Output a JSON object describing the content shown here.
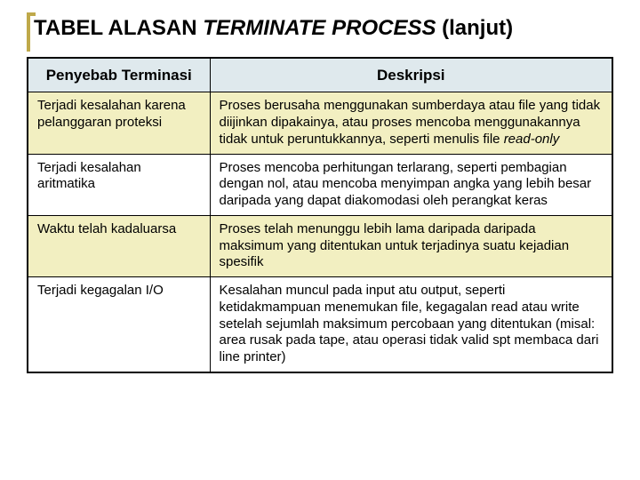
{
  "title": {
    "prefix": "TABEL ALASAN ",
    "italic": "TERMINATE PROCESS",
    "suffix": " (lanjut)"
  },
  "table": {
    "columns": [
      "Penyebab Terminasi",
      "Deskripsi"
    ],
    "rows": [
      {
        "cause": "Terjadi kesalahan karena pelanggaran proteksi",
        "desc_a": "Proses berusaha menggunakan sumberdaya atau file yang tidak diijinkan dipakainya, atau proses mencoba menggunakannya tidak untuk peruntukkannya, seperti menulis file ",
        "desc_b": "read-only",
        "highlight": true
      },
      {
        "cause": "Terjadi kesalahan aritmatika",
        "desc_a": "Proses mencoba perhitungan terlarang, seperti pembagian dengan nol, atau mencoba menyimpan angka yang lebih besar daripada yang dapat diakomodasi oleh perangkat keras",
        "desc_b": "",
        "highlight": false
      },
      {
        "cause": "Waktu telah kadaluarsa",
        "desc_a": "Proses telah menunggu lebih lama daripada daripada maksimum yang ditentukan untuk terjadinya suatu kejadian spesifik",
        "desc_b": "",
        "highlight": true
      },
      {
        "cause": "Terjadi kegagalan I/O",
        "desc_a": "Kesalahan muncul pada input atu output, seperti ketidakmampuan menemukan file, kegagalan read atau write setelah sejumlah maksimum percobaan yang ditentukan (misal: area rusak pada tape, atau operasi tidak valid spt membaca dari line printer)",
        "desc_b": "",
        "highlight": false
      }
    ]
  },
  "style": {
    "header_bg": "#dfe9ed",
    "highlight_bg": "#f2efc1",
    "plain_bg": "#ffffff",
    "border_color": "#000000",
    "accent_color": "#bfa94a",
    "title_fontsize": 24,
    "cell_fontsize": 15
  }
}
